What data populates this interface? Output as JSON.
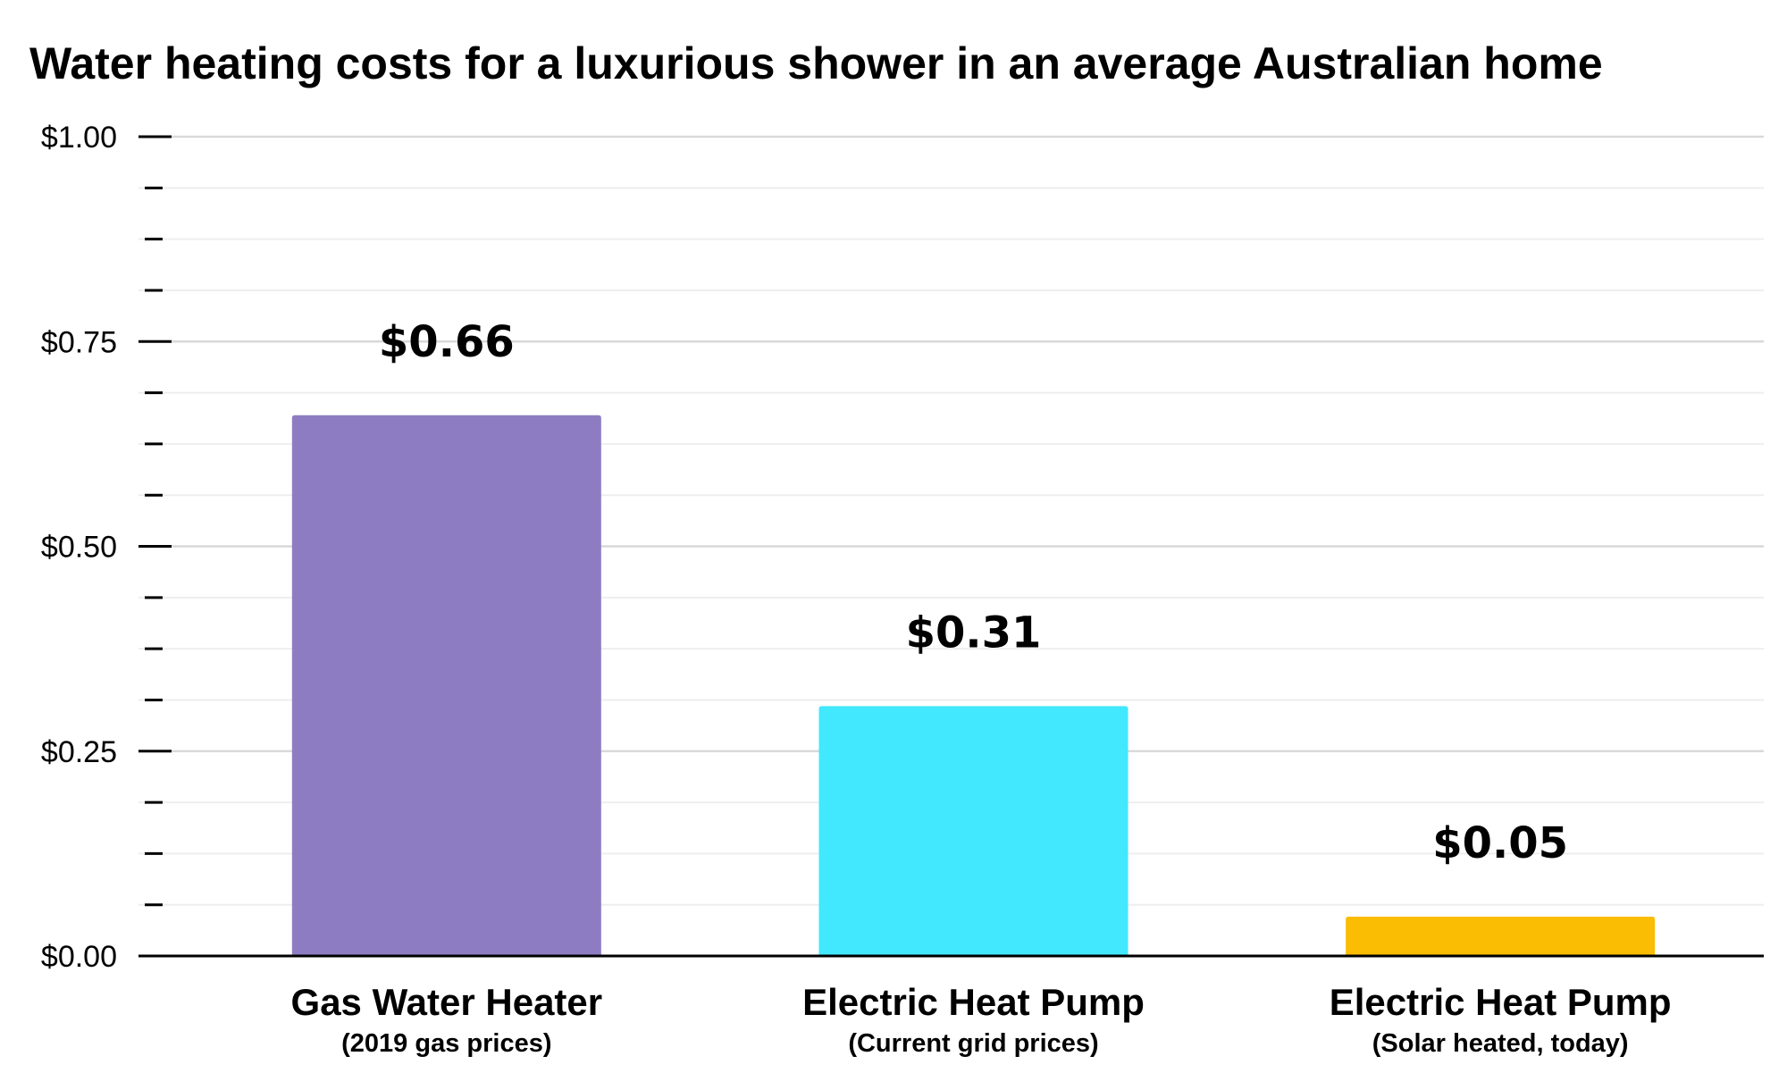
{
  "chart_data": {
    "type": "bar",
    "title": "Water heating costs for a luxurious shower in an average Australian home",
    "xlabel": "",
    "ylabel": "",
    "ylim": [
      0,
      1.0
    ],
    "y_ticks": [
      "$0.00",
      "$0.25",
      "$0.50",
      "$0.75",
      "$1.00"
    ],
    "y_tick_values": [
      0,
      0.25,
      0.5,
      0.75,
      1.0
    ],
    "minor_tick_step": 0.0625,
    "grid": true,
    "categories": [
      {
        "label": "Gas Water Heater",
        "sublabel": "(2019 gas prices)"
      },
      {
        "label": "Electric Heat Pump",
        "sublabel": "(Current grid prices)"
      },
      {
        "label": "Electric Heat Pump",
        "sublabel": "(Solar heated, today)"
      }
    ],
    "values": [
      0.66,
      0.305,
      0.048
    ],
    "value_labels": [
      "$0.66",
      "$0.31",
      "$0.05"
    ],
    "colors": [
      "#8e7cc3",
      "#42e8fd",
      "#fbbc04"
    ],
    "gridline_color": "#d9d9d9",
    "axis_color": "#000000"
  }
}
